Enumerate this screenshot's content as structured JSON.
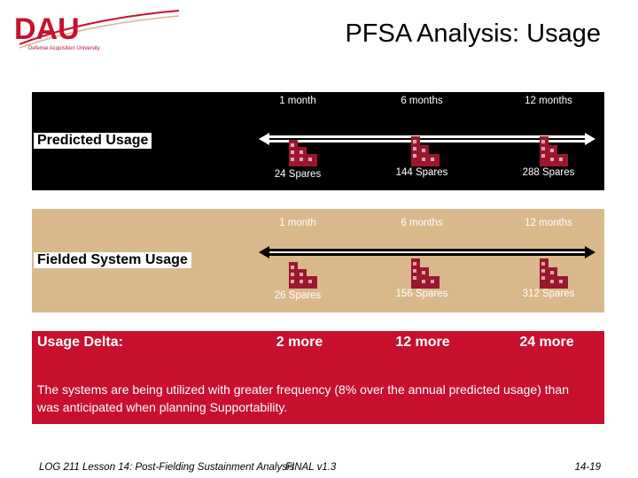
{
  "header": {
    "logo_text": "DAU",
    "logo_subtext": "Defense Acquisition University",
    "title": "PFSA Analysis: Usage"
  },
  "predicted": {
    "heading": "Predicted Usage",
    "ticks": [
      "1 month",
      "6 months",
      "12 months"
    ],
    "spares": [
      "24 Spares",
      "144 Spares",
      "288 Spares"
    ]
  },
  "fielded": {
    "heading": "Fielded System Usage",
    "ticks": [
      "1 month",
      "6 months",
      "12 months"
    ],
    "spares": [
      "26 Spares",
      "156 Spares",
      "312 Spares"
    ]
  },
  "delta": {
    "label": "Usage Delta:",
    "values": [
      "2 more",
      "12 more",
      "24 more"
    ],
    "text": "The systems are being utilized with greater frequency (8% over the annual predicted usage) than was anticipated when planning Supportability."
  },
  "footer": {
    "left": "LOG 211 Lesson 14: Post-Fielding Sustainment Analysis",
    "mid": "FINAL v1.3",
    "right": "14-19"
  },
  "colors": {
    "brand_red": "#c8102e",
    "tan": "#d9b98b",
    "block_red": "#9a1730"
  }
}
